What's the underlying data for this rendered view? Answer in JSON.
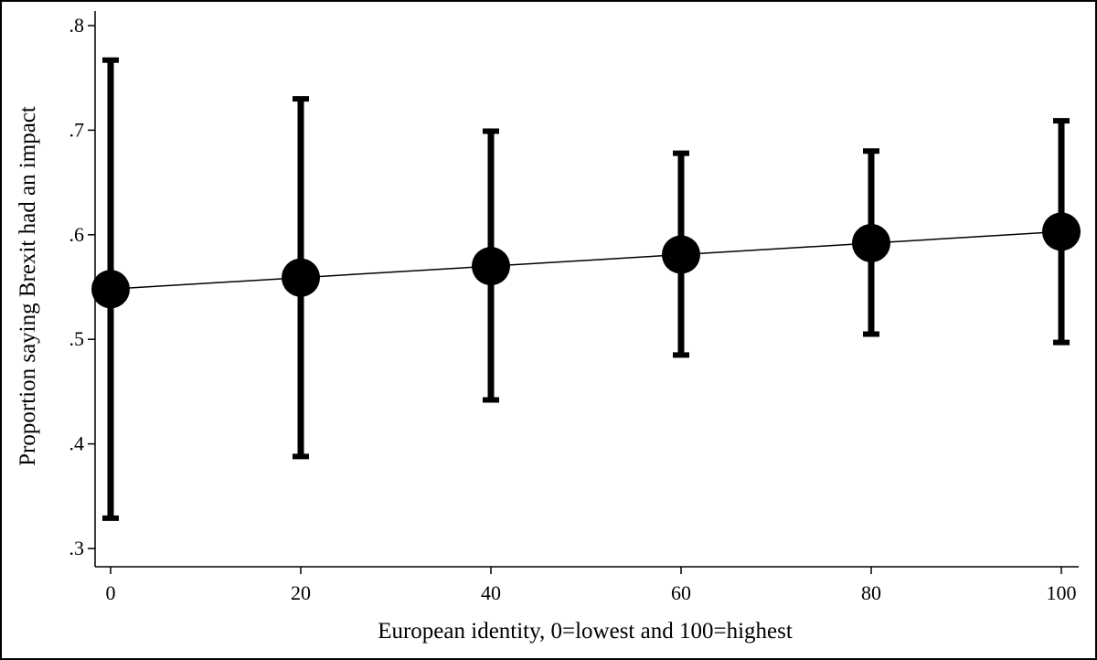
{
  "chart_data": {
    "type": "scatter",
    "xlabel": "European identity, 0=lowest and 100=highest",
    "ylabel": "Proportion saying Brexit had an impact",
    "xlim": [
      0,
      100
    ],
    "ylim": [
      0.3,
      0.8
    ],
    "x_ticks": [
      0,
      20,
      40,
      60,
      80,
      100
    ],
    "x_tick_labels": [
      "0",
      "20",
      "40",
      "60",
      "80",
      "100"
    ],
    "y_ticks": [
      0.3,
      0.4,
      0.5,
      0.6,
      0.7,
      0.8
    ],
    "y_tick_labels": [
      ".3",
      ".4",
      ".5",
      ".6",
      ".7",
      ".8"
    ],
    "grid": false,
    "series": [
      {
        "x": [
          0,
          20,
          40,
          60,
          80,
          100
        ],
        "y": [
          0.548,
          0.559,
          0.57,
          0.581,
          0.592,
          0.603
        ],
        "ci_lower": [
          0.329,
          0.388,
          0.442,
          0.485,
          0.505,
          0.497
        ],
        "ci_upper": [
          0.767,
          0.73,
          0.699,
          0.678,
          0.68,
          0.709
        ]
      }
    ],
    "colors": {
      "marker": "#000000",
      "line": "#000000"
    }
  }
}
